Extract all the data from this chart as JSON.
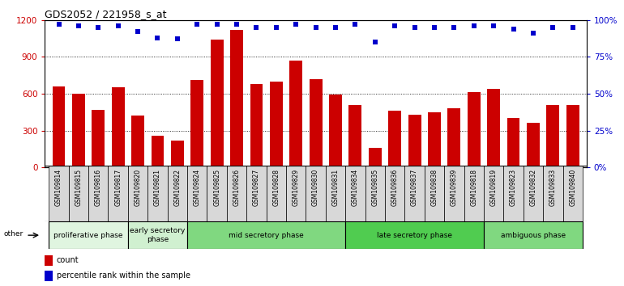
{
  "title": "GDS2052 / 221958_s_at",
  "samples": [
    "GSM109814",
    "GSM109815",
    "GSM109816",
    "GSM109817",
    "GSM109820",
    "GSM109821",
    "GSM109822",
    "GSM109824",
    "GSM109825",
    "GSM109826",
    "GSM109827",
    "GSM109828",
    "GSM109829",
    "GSM109830",
    "GSM109831",
    "GSM109834",
    "GSM109835",
    "GSM109836",
    "GSM109837",
    "GSM109838",
    "GSM109839",
    "GSM109818",
    "GSM109819",
    "GSM109823",
    "GSM109832",
    "GSM109833",
    "GSM109840"
  ],
  "counts": [
    660,
    600,
    470,
    650,
    420,
    260,
    220,
    710,
    1040,
    1120,
    680,
    700,
    870,
    720,
    590,
    510,
    160,
    460,
    430,
    450,
    480,
    610,
    640,
    400,
    360,
    510,
    510
  ],
  "percentiles": [
    97,
    96,
    95,
    96,
    92,
    88,
    87,
    97,
    97,
    97,
    95,
    95,
    97,
    95,
    95,
    97,
    85,
    96,
    95,
    95,
    95,
    96,
    96,
    94,
    91,
    95,
    95
  ],
  "bar_color": "#cc0000",
  "dot_color": "#0000cc",
  "ylim_left": [
    0,
    1200
  ],
  "ylim_right": [
    0,
    100
  ],
  "yticks_left": [
    0,
    300,
    600,
    900,
    1200
  ],
  "yticks_right": [
    0,
    25,
    50,
    75,
    100
  ],
  "phases": [
    {
      "label": "proliferative phase",
      "start": 0,
      "end": 4
    },
    {
      "label": "early secretory\nphase",
      "start": 4,
      "end": 7
    },
    {
      "label": "mid secretory phase",
      "start": 7,
      "end": 15
    },
    {
      "label": "late secretory phase",
      "start": 15,
      "end": 22
    },
    {
      "label": "ambiguous phase",
      "start": 22,
      "end": 27
    }
  ],
  "phase_colors": [
    "#e0f5e0",
    "#d0f0d0",
    "#80d880",
    "#50cc50",
    "#80d880"
  ],
  "xtick_bg": "#d8d8d8",
  "legend_count_label": "count",
  "legend_pct_label": "percentile rank within the sample",
  "other_label": "other",
  "fig_width": 7.7,
  "fig_height": 3.54,
  "dpi": 100
}
